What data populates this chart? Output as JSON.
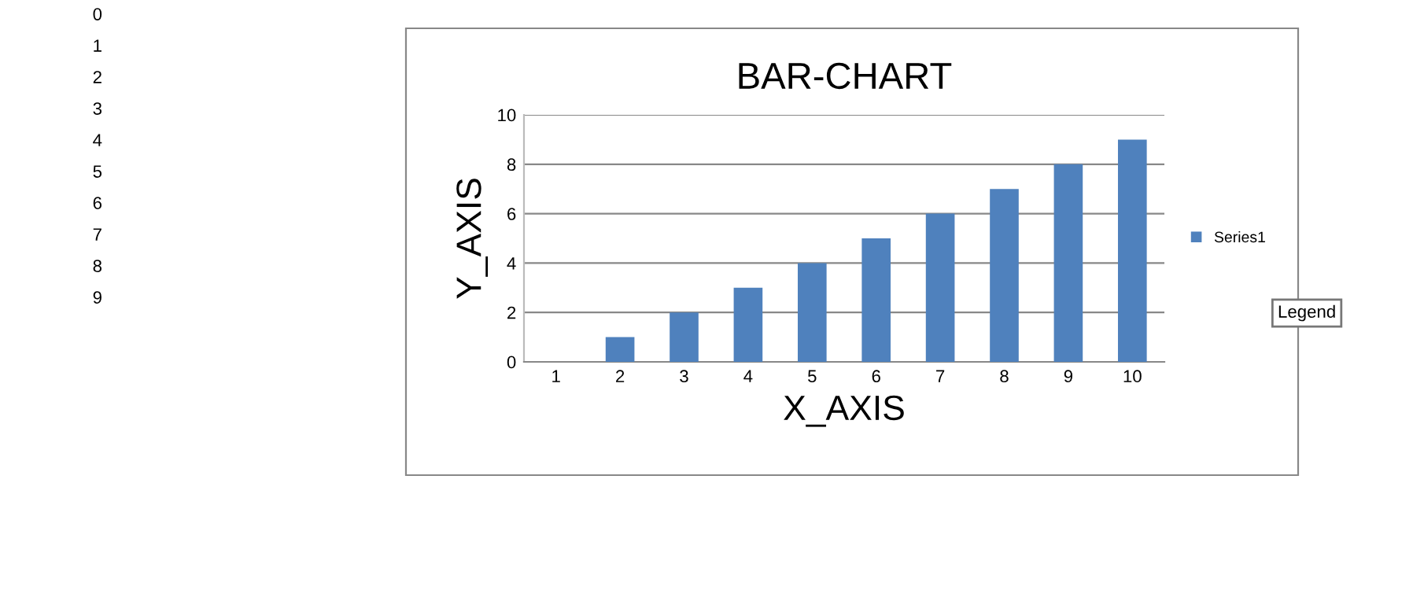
{
  "chart_data": {
    "type": "bar",
    "title": "BAR-CHART",
    "xlabel": "X_AXIS",
    "ylabel": "Y_AXIS",
    "categories": [
      "1",
      "2",
      "3",
      "4",
      "5",
      "6",
      "7",
      "8",
      "9",
      "10"
    ],
    "series": [
      {
        "name": "Series1",
        "color": "#4f81bd",
        "values": [
          0,
          1,
          2,
          3,
          4,
          5,
          6,
          7,
          8,
          9
        ]
      }
    ],
    "ylim": [
      0,
      10
    ],
    "yticks": [
      0,
      2,
      4,
      6,
      8,
      10
    ],
    "grid": "y",
    "legend": "right",
    "annotations": [
      "0",
      "1",
      "2",
      "3",
      "4",
      "5",
      "6",
      "7",
      "8",
      "9",
      "Legend"
    ]
  }
}
